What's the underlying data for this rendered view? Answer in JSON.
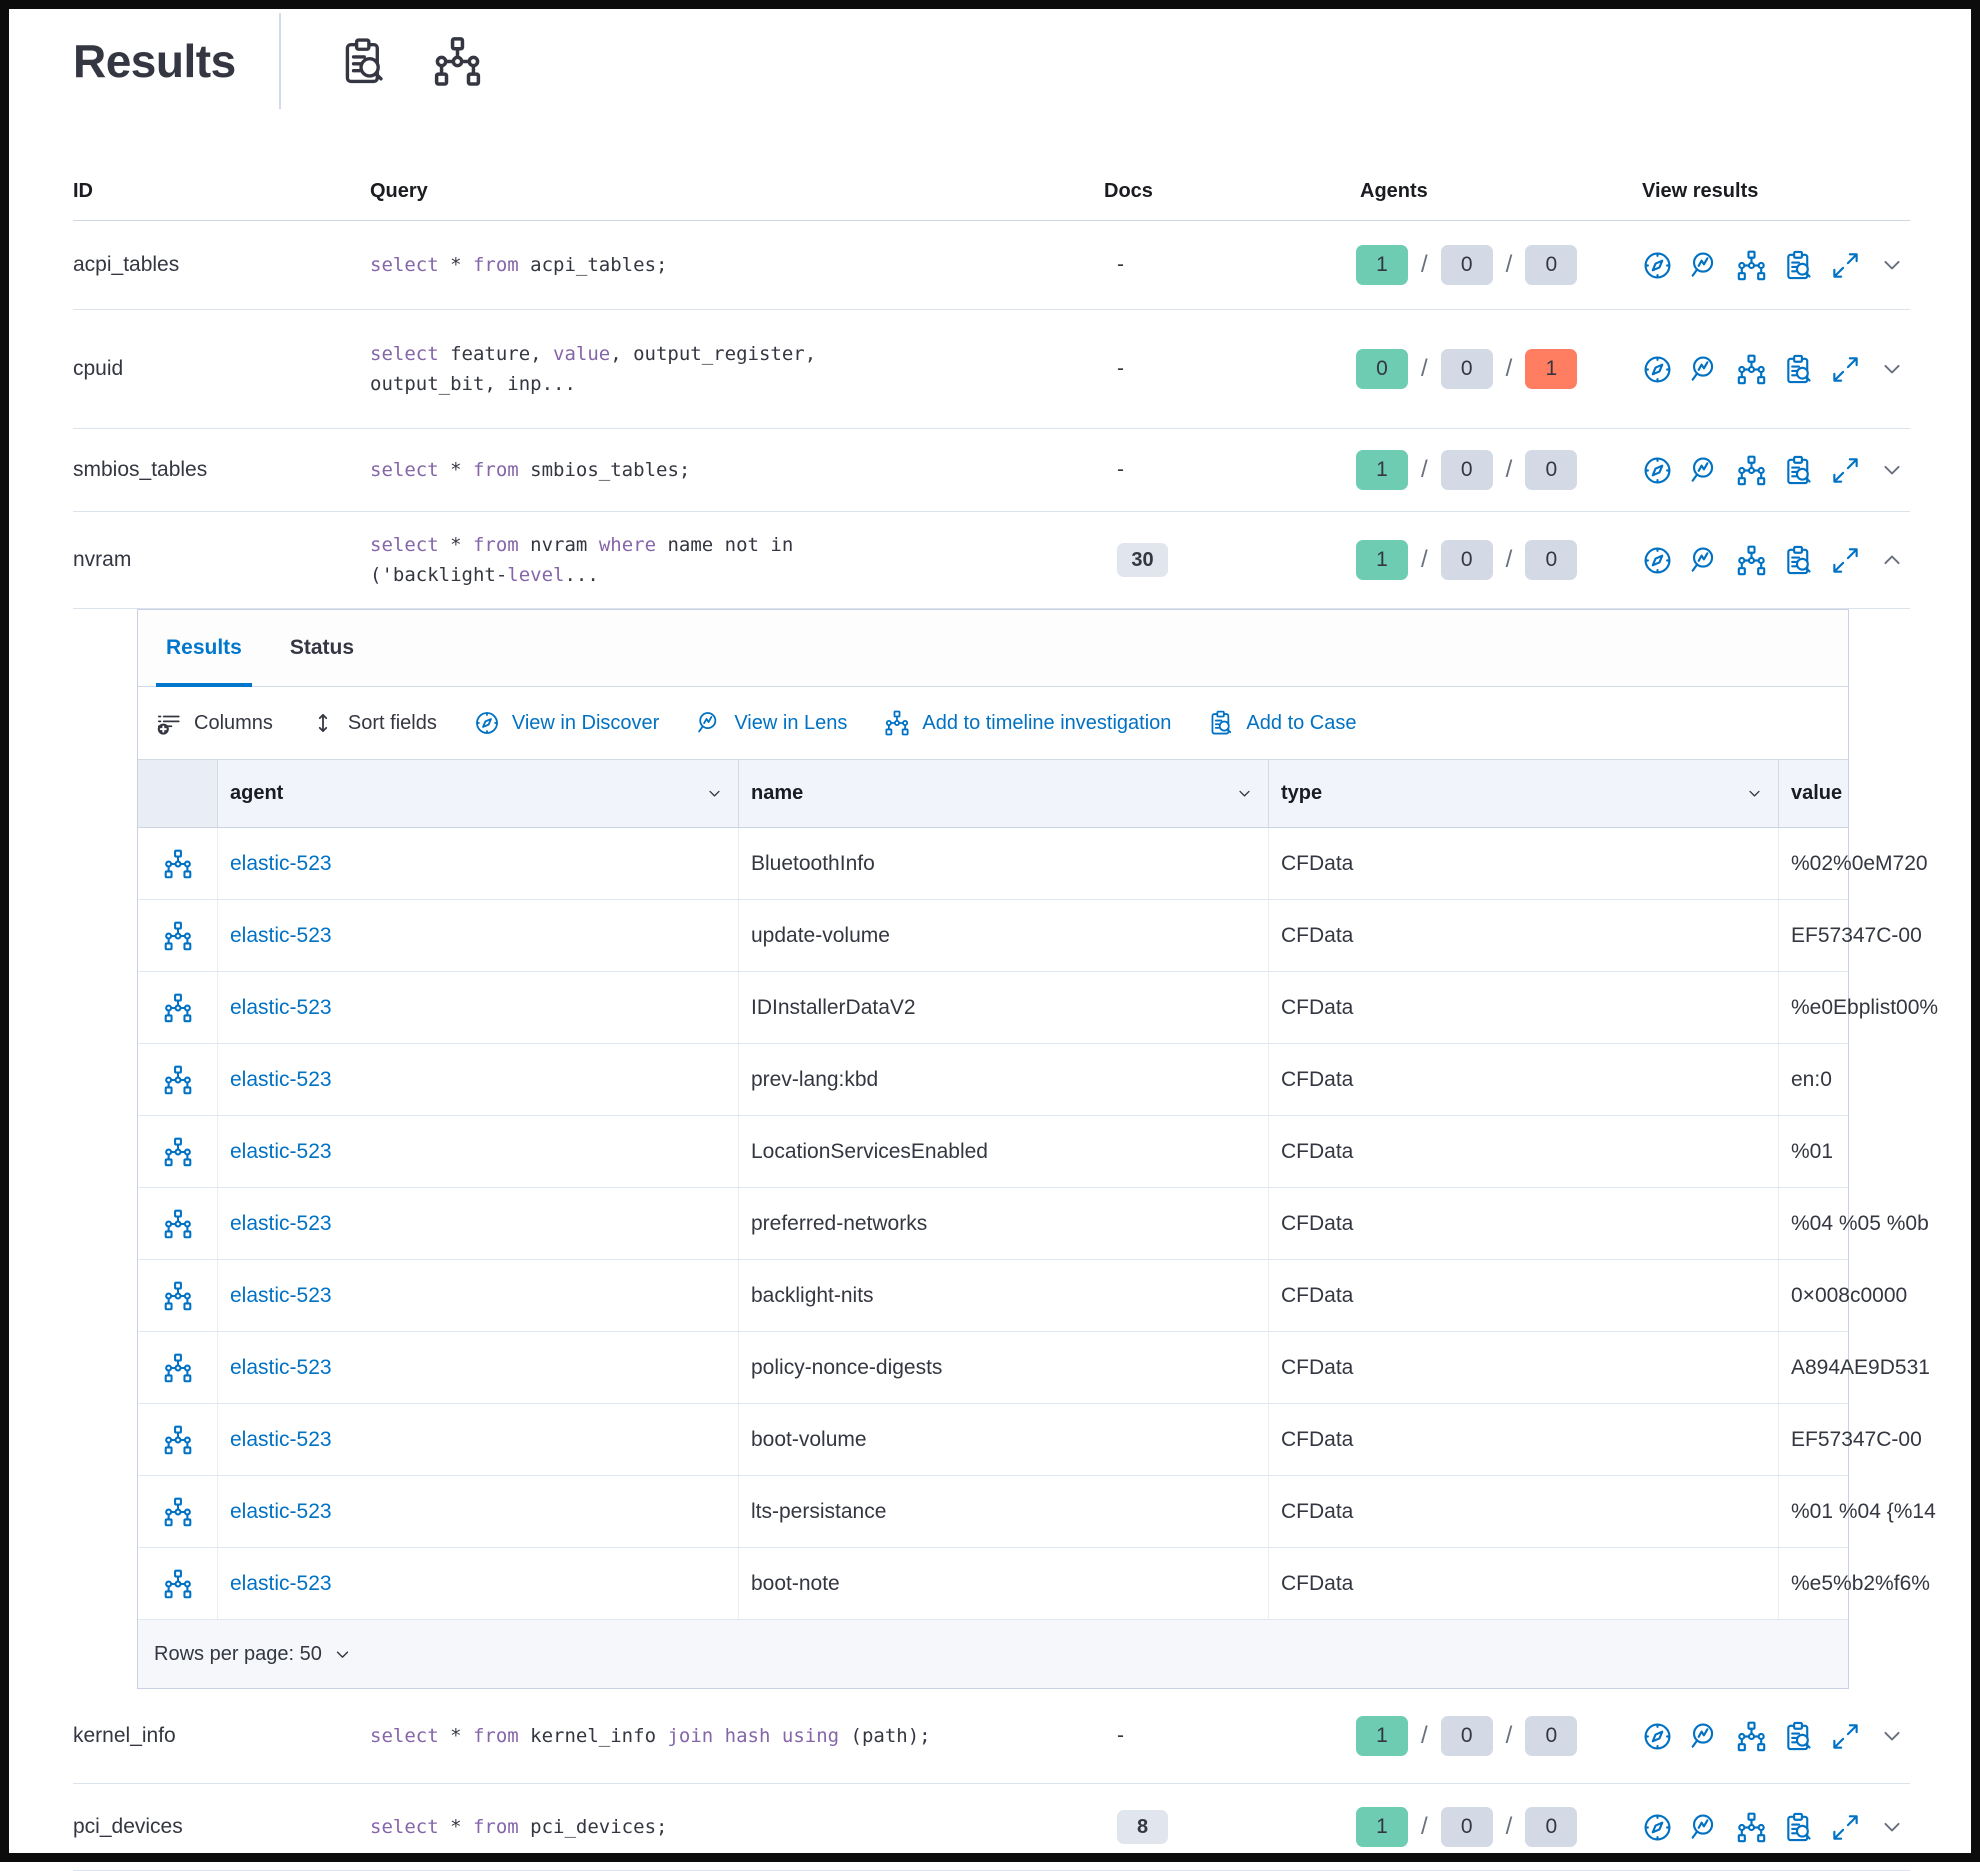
{
  "title": "Results",
  "header_icons": [
    {
      "name": "live-query-details-icon",
      "glyph": "clipboard-search"
    },
    {
      "name": "packs-icon",
      "glyph": "node-tree"
    }
  ],
  "colors": {
    "accent_blue": "#0071C3",
    "tab_blue": "#0077CC",
    "keyword_purple": "#8566A9",
    "badge_green": "#6DCCB1",
    "badge_gray": "#D3DAE6",
    "badge_red": "#FF7E62"
  },
  "outer_table": {
    "headers": {
      "id": "ID",
      "query": "Query",
      "docs": "Docs",
      "agents": "Agents",
      "view": "View results"
    },
    "row_actions": [
      "view-in-discover",
      "view-in-lens",
      "add-to-timeline",
      "add-to-case",
      "expand"
    ],
    "rows_top": [
      {
        "id": "acpi_tables",
        "query_lines": [
          [
            [
              "select",
              true
            ],
            [
              " * ",
              false
            ],
            [
              "from",
              true
            ],
            [
              " acpi_tables;",
              false
            ]
          ]
        ],
        "docs": "-",
        "agents": [
          "1",
          "0",
          "0"
        ],
        "expanded": false
      },
      {
        "id": "cpuid",
        "query_lines": [
          [
            [
              "select",
              true
            ],
            [
              " feature, ",
              false
            ],
            [
              "value",
              true
            ],
            [
              ", output_register,",
              false
            ]
          ],
          [
            [
              "output_bit, inp...",
              false
            ]
          ]
        ],
        "docs": "-",
        "agents": [
          "0",
          "0",
          "1"
        ],
        "expanded": false
      },
      {
        "id": "smbios_tables",
        "query_lines": [
          [
            [
              "select",
              true
            ],
            [
              " * ",
              false
            ],
            [
              "from",
              true
            ],
            [
              " smbios_tables;",
              false
            ]
          ]
        ],
        "docs": "-",
        "agents": [
          "1",
          "0",
          "0"
        ],
        "expanded": false
      },
      {
        "id": "nvram",
        "query_lines": [
          [
            [
              "select",
              true
            ],
            [
              " * ",
              false
            ],
            [
              "from",
              true
            ],
            [
              " nvram ",
              false
            ],
            [
              "where",
              true
            ],
            [
              " name not in",
              false
            ]
          ],
          [
            [
              "('backlight-",
              false
            ],
            [
              "level",
              true
            ],
            [
              "...",
              false
            ]
          ]
        ],
        "docs_badge": "30",
        "agents": [
          "1",
          "0",
          "0"
        ],
        "expanded": true
      }
    ],
    "rows_bottom": [
      {
        "id": "kernel_info",
        "query_lines": [
          [
            [
              "select",
              true
            ],
            [
              " * ",
              false
            ],
            [
              "from",
              true
            ],
            [
              " kernel_info ",
              false
            ],
            [
              "join",
              true
            ],
            [
              " ",
              false
            ],
            [
              "hash",
              true
            ],
            [
              " ",
              false
            ],
            [
              "using",
              true
            ],
            [
              " (path);",
              false
            ]
          ]
        ],
        "docs": "-",
        "agents": [
          "1",
          "0",
          "0"
        ],
        "expanded": false
      },
      {
        "id": "pci_devices",
        "query_lines": [
          [
            [
              "select",
              true
            ],
            [
              " * ",
              false
            ],
            [
              "from",
              true
            ],
            [
              " pci_devices;",
              false
            ]
          ]
        ],
        "docs_badge": "8",
        "agents": [
          "1",
          "0",
          "0"
        ],
        "expanded": false
      }
    ]
  },
  "panel": {
    "tabs": [
      {
        "label": "Results",
        "active": true
      },
      {
        "label": "Status",
        "active": false
      }
    ],
    "toolbar": [
      {
        "label": "Columns",
        "icon": "columns",
        "blue": false
      },
      {
        "label": "Sort fields",
        "icon": "sort",
        "blue": false
      },
      {
        "label": "View in Discover",
        "icon": "compass",
        "blue": true
      },
      {
        "label": "View in Lens",
        "icon": "lens",
        "blue": true
      },
      {
        "label": "Add to timeline investigation",
        "icon": "tree",
        "blue": true
      },
      {
        "label": "Add to Case",
        "icon": "case",
        "blue": true
      }
    ],
    "grid": {
      "columns": [
        "agent",
        "name",
        "type",
        "value"
      ],
      "rows": [
        {
          "agent": "elastic-523",
          "name": "BluetoothInfo",
          "type": "CFData",
          "value": "%02%0eM720"
        },
        {
          "agent": "elastic-523",
          "name": "update-volume",
          "type": "CFData",
          "value": "EF57347C-00"
        },
        {
          "agent": "elastic-523",
          "name": "IDInstallerDataV2",
          "type": "CFData",
          "value": "%e0Ebplist00%"
        },
        {
          "agent": "elastic-523",
          "name": "prev-lang:kbd",
          "type": "CFData",
          "value": "en:0"
        },
        {
          "agent": "elastic-523",
          "name": "LocationServicesEnabled",
          "type": "CFData",
          "value": "%01"
        },
        {
          "agent": "elastic-523",
          "name": "preferred-networks",
          "type": "CFData",
          "value": "%04 %05 %0b"
        },
        {
          "agent": "elastic-523",
          "name": "backlight-nits",
          "type": "CFData",
          "value": "0×008c0000"
        },
        {
          "agent": "elastic-523",
          "name": "policy-nonce-digests",
          "type": "CFData",
          "value": "A894AE9D531"
        },
        {
          "agent": "elastic-523",
          "name": "boot-volume",
          "type": "CFData",
          "value": "EF57347C-00"
        },
        {
          "agent": "elastic-523",
          "name": "lts-persistance",
          "type": "CFData",
          "value": "%01 %04 {%14"
        },
        {
          "agent": "elastic-523",
          "name": "boot-note",
          "type": "CFData",
          "value": "%e5%b2%f6%"
        }
      ]
    },
    "footer": {
      "rows_per_page_label": "Rows per page: 50"
    }
  }
}
